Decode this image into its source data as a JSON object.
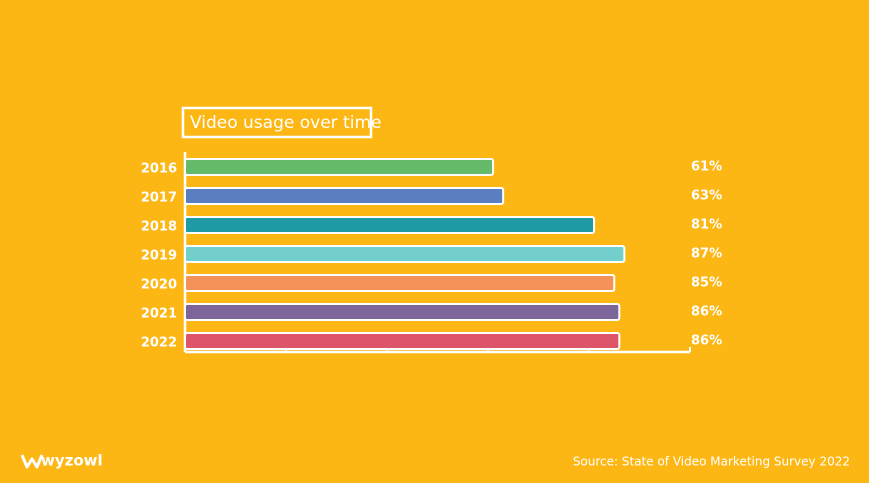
{
  "chart_data": {
    "type": "bar",
    "orientation": "horizontal",
    "title": "Video usage over time",
    "categories": [
      "2016",
      "2017",
      "2018",
      "2019",
      "2020",
      "2021",
      "2022"
    ],
    "values": [
      61,
      63,
      81,
      87,
      85,
      86,
      86
    ],
    "value_labels": [
      "61%",
      "63%",
      "81%",
      "87%",
      "85%",
      "86%",
      "86%"
    ],
    "colors": [
      "#66bb6a",
      "#5a7fc0",
      "#1f9ba6",
      "#72cfcb",
      "#f4925a",
      "#7d6599",
      "#de5468"
    ],
    "xlim": [
      0,
      100
    ],
    "xticks": [
      0,
      20,
      40,
      60,
      80,
      100
    ],
    "source": "Source: State of Video Marketing Survey 2022"
  },
  "brand": "wyzowl"
}
